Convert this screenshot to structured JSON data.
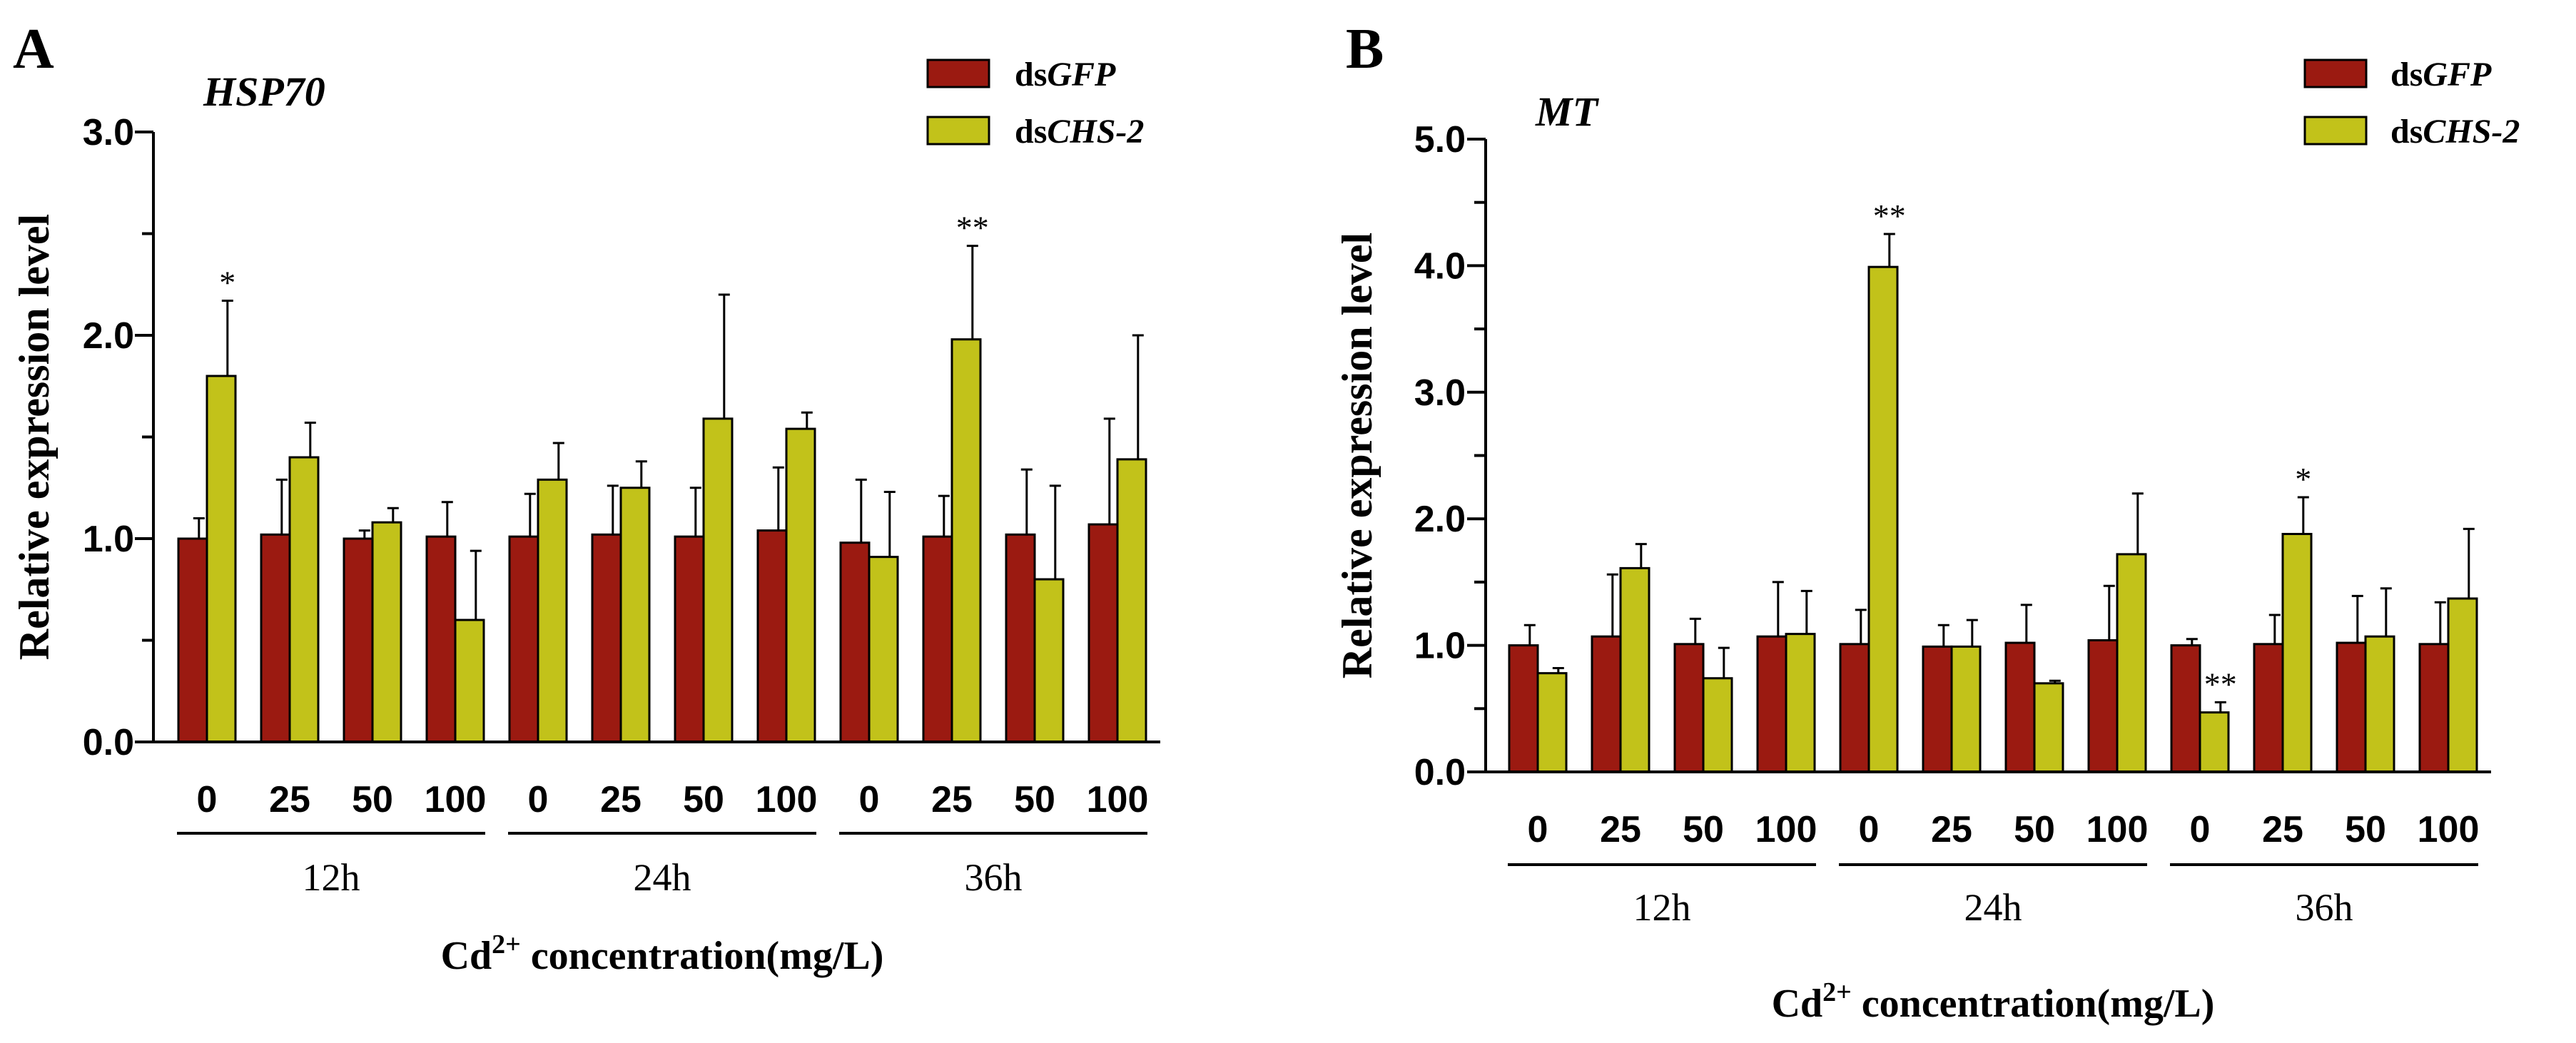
{
  "colors": {
    "dsGFP": "#9b1a11",
    "dsCHS2": "#c2c21a",
    "axis": "#000000"
  },
  "chart_data": [
    {
      "panel_label": "A",
      "gene": "HSP70",
      "type": "bar",
      "ylabel": "Relative expression level",
      "xlabel_prefix": "Cd",
      "xlabel_sup": "2+",
      "xlabel_suffix": " concentration(mg/L)",
      "ylim": [
        0,
        3.0
      ],
      "yticks": [
        "0.0",
        "1.0",
        "2.0",
        "3.0"
      ],
      "ytick_values": [
        0,
        1,
        2,
        3
      ],
      "minor_tick_step": 0.5,
      "legend": [
        {
          "prefix": "ds",
          "name": "GFP",
          "color_key": "dsGFP"
        },
        {
          "prefix": "ds",
          "name": "CHS-2",
          "color_key": "dsCHS2"
        }
      ],
      "groups": [
        {
          "label": "12h",
          "concentrations": [
            "0",
            "25",
            "50",
            "100"
          ]
        },
        {
          "label": "24h",
          "concentrations": [
            "0",
            "25",
            "50",
            "100"
          ]
        },
        {
          "label": "36h",
          "concentrations": [
            "0",
            "25",
            "50",
            "100"
          ]
        }
      ],
      "series": [
        {
          "name": "dsGFP",
          "values": [
            1.0,
            1.02,
            1.0,
            1.01,
            1.01,
            1.02,
            1.01,
            1.04,
            0.98,
            1.01,
            1.02,
            1.07
          ],
          "errors": [
            0.1,
            0.27,
            0.04,
            0.17,
            0.21,
            0.24,
            0.24,
            0.31,
            0.31,
            0.2,
            0.32,
            0.52
          ],
          "sig": [
            "",
            "",
            "",
            "",
            "",
            "",
            "",
            "",
            "",
            "",
            "",
            ""
          ]
        },
        {
          "name": "dsCHS-2",
          "values": [
            1.8,
            1.4,
            1.08,
            0.6,
            1.29,
            1.25,
            1.59,
            1.54,
            0.91,
            1.98,
            0.8,
            1.39
          ],
          "errors": [
            0.37,
            0.17,
            0.07,
            0.34,
            0.18,
            0.13,
            0.61,
            0.08,
            0.32,
            0.46,
            0.46,
            0.61
          ],
          "sig": [
            "*",
            "",
            "",
            "",
            "",
            "",
            "",
            "",
            "",
            "**",
            "",
            ""
          ]
        }
      ]
    },
    {
      "panel_label": "B",
      "gene": "MT",
      "type": "bar",
      "ylabel": "Relative expression level",
      "xlabel_prefix": "Cd",
      "xlabel_sup": "2+",
      "xlabel_suffix": " concentration(mg/L)",
      "ylim": [
        0,
        5.0
      ],
      "yticks": [
        "0.0",
        "1.0",
        "2.0",
        "3.0",
        "4.0",
        "5.0"
      ],
      "ytick_values": [
        0,
        1,
        2,
        3,
        4,
        5
      ],
      "minor_tick_step": 0.5,
      "legend": [
        {
          "prefix": "ds",
          "name": "GFP",
          "color_key": "dsGFP"
        },
        {
          "prefix": "ds",
          "name": "CHS-2",
          "color_key": "dsCHS2"
        }
      ],
      "groups": [
        {
          "label": "12h",
          "concentrations": [
            "0",
            "25",
            "50",
            "100"
          ]
        },
        {
          "label": "24h",
          "concentrations": [
            "0",
            "25",
            "50",
            "100"
          ]
        },
        {
          "label": "36h",
          "concentrations": [
            "0",
            "25",
            "50",
            "100"
          ]
        }
      ],
      "series": [
        {
          "name": "dsGFP",
          "values": [
            1.0,
            1.07,
            1.01,
            1.07,
            1.01,
            0.99,
            1.02,
            1.04,
            1.0,
            1.01,
            1.02,
            1.01
          ],
          "errors": [
            0.16,
            0.49,
            0.2,
            0.43,
            0.27,
            0.17,
            0.3,
            0.43,
            0.05,
            0.23,
            0.37,
            0.33
          ],
          "sig": [
            "",
            "",
            "",
            "",
            "",
            "",
            "",
            "",
            "",
            "",
            "",
            ""
          ]
        },
        {
          "name": "dsCHS-2",
          "values": [
            0.78,
            1.61,
            0.74,
            1.09,
            3.99,
            0.99,
            0.7,
            1.72,
            0.47,
            1.88,
            1.07,
            1.37
          ],
          "errors": [
            0.04,
            0.19,
            0.24,
            0.34,
            0.26,
            0.21,
            0.02,
            0.48,
            0.08,
            0.29,
            0.38,
            0.55
          ],
          "sig": [
            "",
            "",
            "",
            "",
            "**",
            "",
            "",
            "",
            "**",
            "*",
            "",
            ""
          ]
        }
      ]
    }
  ]
}
